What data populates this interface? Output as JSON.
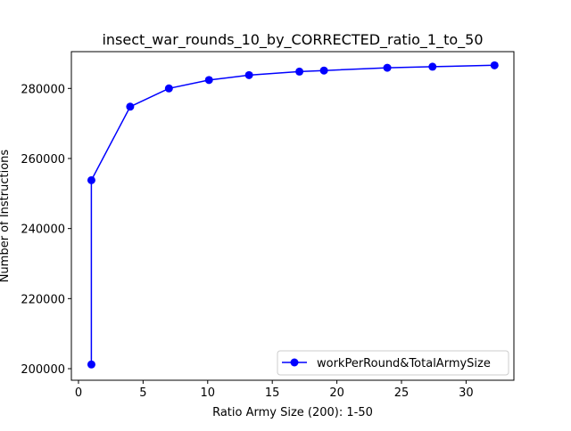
{
  "chart_data": {
    "type": "line",
    "title": "insect_war_rounds_10_by_CORRECTED_ratio_1_to_50",
    "xlabel": "Ratio Army Size (200): 1-50",
    "ylabel": "Number of Instructions",
    "xlim": [
      -0.55,
      33.7
    ],
    "ylim": [
      196700,
      290500
    ],
    "x_ticks": [
      0,
      5,
      10,
      15,
      20,
      25,
      30
    ],
    "y_ticks": [
      200000,
      220000,
      240000,
      260000,
      280000
    ],
    "grid": false,
    "legend_position": "lower-right",
    "series": [
      {
        "name": "workPerRound&TotalArmySize",
        "color": "#0000ff",
        "marker": "circle",
        "x": [
          1.0,
          1.0,
          4.0,
          7.0,
          10.1,
          13.2,
          17.1,
          19.0,
          23.9,
          27.4,
          32.2
        ],
        "y": [
          201200,
          253800,
          274800,
          280000,
          282400,
          283800,
          284800,
          285100,
          285900,
          286200,
          286600
        ]
      }
    ]
  }
}
